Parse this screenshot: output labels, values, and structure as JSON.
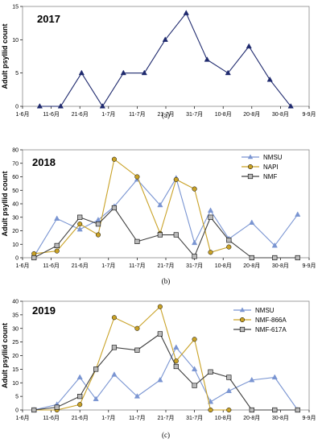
{
  "chart_data": [
    {
      "type": "line",
      "title": "2017",
      "ylabel": "Adult psyllid count",
      "caption": "(a)",
      "ylim": [
        0,
        15
      ],
      "yticks": [
        0,
        5,
        10,
        15
      ],
      "xticks": [
        "1-6月",
        "11-6月",
        "21-6月",
        "1-7月",
        "11-7月",
        "21-7月",
        "31-7月",
        "10-8月",
        "20-8月",
        "30-8月",
        "9-9月"
      ],
      "legend": "none",
      "series": [
        {
          "color": "#1f2a6e",
          "marker": "triangle",
          "x": [
            1,
            2,
            3,
            4,
            5,
            6,
            7,
            8,
            9,
            10,
            11,
            12,
            13
          ],
          "values": [
            0,
            0,
            5,
            0,
            5,
            5,
            10,
            14,
            7,
            5,
            9,
            4,
            0
          ]
        }
      ]
    },
    {
      "type": "line",
      "title": "2018",
      "ylabel": "Adult psyllid count",
      "caption": "(b)",
      "ylim": [
        0,
        80
      ],
      "yticks": [
        0,
        10,
        20,
        30,
        40,
        50,
        60,
        70,
        80
      ],
      "xticks": [
        "1-6月",
        "11-6月",
        "21-6月",
        "1-7月",
        "11-7月",
        "21-7月",
        "31-7月",
        "10-8月",
        "20-8月",
        "30-8月",
        "9-9月"
      ],
      "legend": "top-right",
      "series": [
        {
          "name": "NMSU",
          "color": "#7a95d2",
          "marker": "triangle",
          "x": [
            0.5,
            1.5,
            2.5,
            3.3,
            4,
            5,
            6,
            6.7,
            7.5,
            8.2,
            9,
            10,
            11,
            12
          ],
          "values": [
            1,
            29,
            21,
            28,
            38,
            58,
            39,
            59,
            11,
            35,
            14,
            26,
            9,
            32
          ]
        },
        {
          "name": "NAPI",
          "color": "#c9a227",
          "marker": "circle",
          "x": [
            0.5,
            1.5,
            2.5,
            3.3,
            4,
            5,
            6,
            6.7,
            7.5,
            8.2,
            9
          ],
          "values": [
            3,
            5,
            25,
            17,
            73,
            60,
            18,
            58,
            51,
            4,
            8
          ]
        },
        {
          "name": "NMF",
          "color": "#404040",
          "marker": "square",
          "x": [
            0.5,
            1.5,
            2.5,
            3.3,
            4,
            5,
            6,
            6.7,
            7.5,
            8.2,
            9,
            10,
            11,
            12
          ],
          "values": [
            0,
            9,
            30,
            25,
            37,
            12,
            17,
            17,
            1,
            30,
            13,
            0,
            0,
            0
          ]
        }
      ]
    },
    {
      "type": "line",
      "title": "2019",
      "ylabel": "Adult psyllid count",
      "caption": "(c)",
      "ylim": [
        0,
        40
      ],
      "yticks": [
        0,
        5,
        10,
        15,
        20,
        25,
        30,
        35,
        40
      ],
      "xticks": [
        "1-6月",
        "11-6月",
        "21-6月",
        "1-7月",
        "11-7月",
        "21-7月",
        "31-7月",
        "10-8月",
        "20-8月",
        "30-8月",
        "9-9月"
      ],
      "legend": "top-right",
      "series": [
        {
          "name": "NMSU",
          "color": "#7a95d2",
          "marker": "triangle",
          "x": [
            0.5,
            1.5,
            2.5,
            3.2,
            4,
            5,
            6,
            6.7,
            7.5,
            8.2,
            9,
            10,
            11,
            12
          ],
          "values": [
            0,
            2,
            12,
            4,
            13,
            5,
            11,
            23,
            15,
            3,
            7,
            11,
            12,
            0
          ]
        },
        {
          "name": "NMF-866A",
          "color": "#c9a227",
          "marker": "circle",
          "x": [
            0.5,
            1.5,
            2.5,
            3.2,
            4,
            5,
            6,
            6.7,
            7.5,
            8.2,
            9
          ],
          "values": [
            0,
            0,
            2,
            15,
            34,
            30,
            38,
            18,
            26,
            0,
            0
          ]
        },
        {
          "name": "NMF-617A",
          "color": "#404040",
          "marker": "square",
          "x": [
            0.5,
            1.5,
            2.5,
            3.2,
            4,
            5,
            6,
            6.7,
            7.5,
            8.2,
            9,
            10,
            11,
            12
          ],
          "values": [
            0,
            1,
            5,
            15,
            23,
            22,
            28,
            16,
            9,
            14,
            12,
            0,
            0,
            0
          ]
        }
      ]
    }
  ]
}
